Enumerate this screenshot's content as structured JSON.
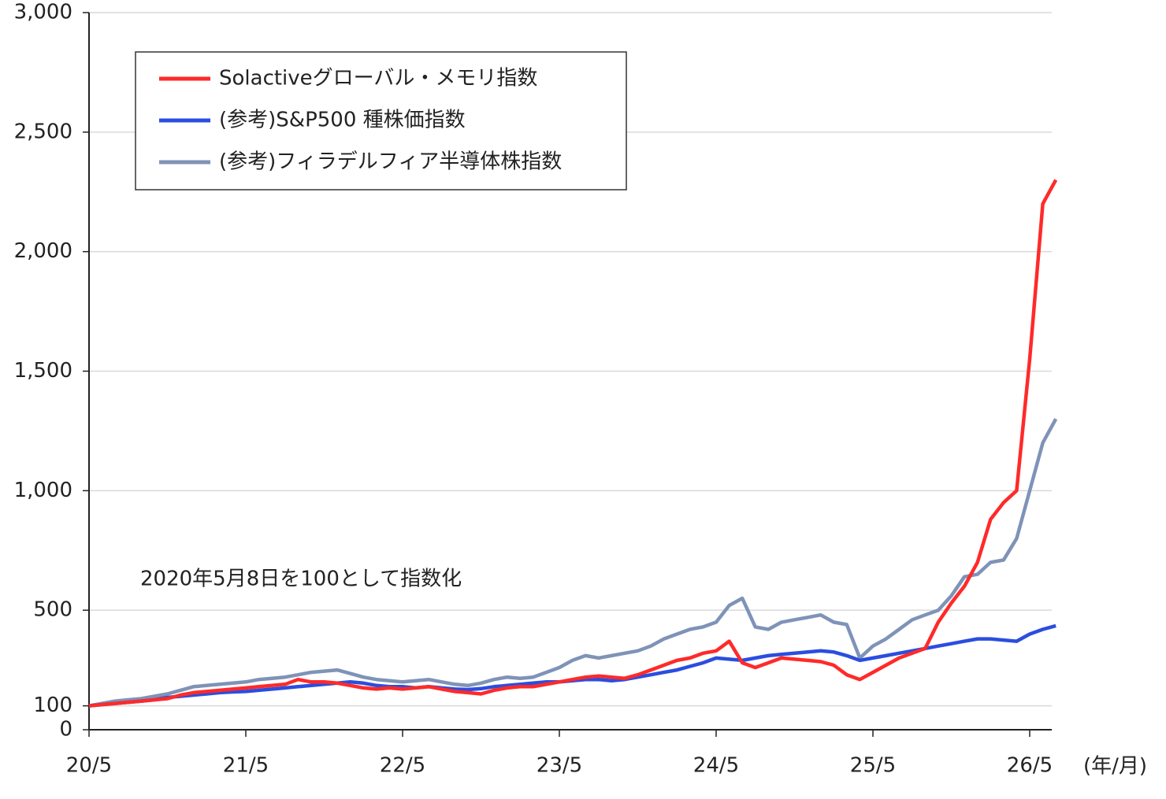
{
  "chart_data": {
    "type": "line",
    "annotation": "2020年5月8日を100として指数化",
    "x_unit": "(年/月)",
    "x": [
      "20/5",
      null,
      null,
      null,
      null,
      null,
      null,
      null,
      null,
      null,
      null,
      null,
      "21/5",
      null,
      null,
      null,
      null,
      null,
      null,
      null,
      null,
      null,
      null,
      null,
      "22/5",
      null,
      null,
      null,
      null,
      null,
      null,
      null,
      null,
      null,
      null,
      null,
      "23/5",
      null,
      null,
      null,
      null,
      null,
      null,
      null,
      null,
      null,
      null,
      null,
      "24/5",
      null,
      null,
      null,
      null,
      null,
      null,
      null,
      null,
      null,
      null,
      null,
      "25/5",
      null,
      null,
      null,
      null,
      null,
      null,
      null,
      null,
      null,
      null,
      null,
      "26/5",
      null,
      null
    ],
    "ylim": [
      0,
      3000
    ],
    "yticks": [
      0,
      100,
      500,
      {
        "value": 1000,
        "label": "1,000"
      },
      {
        "value": 1500,
        "label": "1,500"
      },
      {
        "value": 2000,
        "label": "2,000"
      },
      {
        "value": 2500,
        "label": "2,500"
      },
      {
        "value": 3000,
        "label": "3,000"
      }
    ],
    "grid": true,
    "legend": "upper left",
    "series": [
      {
        "name": "Solactiveグローバル・メモリ指数",
        "color": "#ff2a2a",
        "values": [
          100,
          105,
          110,
          115,
          120,
          125,
          130,
          145,
          155,
          160,
          165,
          170,
          175,
          180,
          185,
          190,
          210,
          200,
          200,
          195,
          185,
          175,
          170,
          175,
          170,
          175,
          180,
          170,
          160,
          155,
          150,
          165,
          175,
          180,
          180,
          190,
          200,
          210,
          220,
          225,
          220,
          215,
          230,
          250,
          270,
          290,
          300,
          320,
          330,
          370,
          280,
          260,
          280,
          300,
          295,
          290,
          285,
          270,
          230,
          210,
          240,
          270,
          300,
          320,
          340,
          450,
          530,
          600,
          700,
          880,
          950,
          1000,
          1550,
          2200,
          2300
        ]
      },
      {
        "name": "(参考)S&P500 種株価指数",
        "color": "#2b4de0",
        "values": [
          100,
          105,
          110,
          115,
          120,
          125,
          135,
          140,
          145,
          150,
          155,
          158,
          160,
          165,
          170,
          175,
          180,
          185,
          190,
          195,
          200,
          195,
          185,
          180,
          180,
          175,
          180,
          175,
          170,
          168,
          172,
          180,
          185,
          190,
          195,
          200,
          200,
          205,
          210,
          210,
          205,
          210,
          220,
          230,
          240,
          250,
          265,
          280,
          300,
          295,
          290,
          300,
          310,
          315,
          320,
          325,
          330,
          325,
          310,
          290,
          300,
          310,
          320,
          330,
          340,
          350,
          360,
          370,
          380,
          380,
          375,
          370,
          400,
          420,
          435
        ]
      },
      {
        "name": "(参考)フィラデルフィア半導体株指数",
        "color": "#7f93b8",
        "values": [
          100,
          110,
          120,
          125,
          130,
          140,
          150,
          165,
          180,
          185,
          190,
          195,
          200,
          210,
          215,
          220,
          230,
          240,
          245,
          250,
          235,
          220,
          210,
          205,
          200,
          205,
          210,
          200,
          190,
          185,
          195,
          210,
          220,
          215,
          220,
          240,
          260,
          290,
          310,
          300,
          310,
          320,
          330,
          350,
          380,
          400,
          420,
          430,
          450,
          520,
          550,
          430,
          420,
          450,
          460,
          470,
          480,
          450,
          440,
          300,
          350,
          380,
          420,
          460,
          480,
          500,
          560,
          640,
          650,
          700,
          710,
          800,
          1000,
          1200,
          1300
        ]
      }
    ]
  }
}
